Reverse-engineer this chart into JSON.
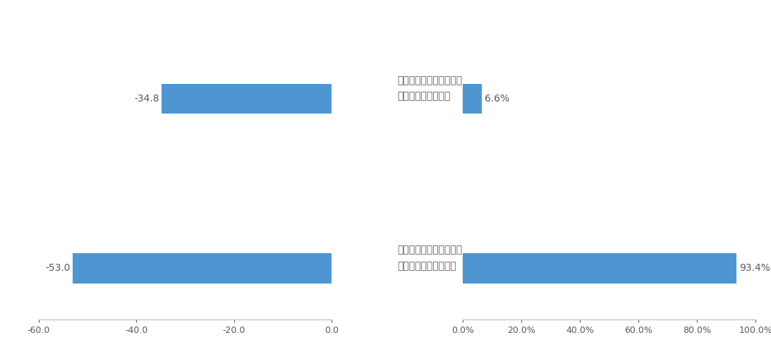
{
  "left_chart": {
    "values": [
      -34.8,
      -53.0
    ],
    "xlim": [
      -60,
      0
    ],
    "xticks": [
      -60.0,
      -40.0,
      -20.0,
      0.0
    ],
    "value_labels": [
      "-34.8",
      "-53.0"
    ]
  },
  "right_chart": {
    "values": [
      6.6,
      93.4
    ],
    "xlim": [
      0,
      100
    ],
    "xticks": [
      0,
      20,
      40,
      60,
      80,
      100
    ],
    "xtick_labels": [
      "0.0%",
      "20.0%",
      "40.0%",
      "60.0%",
      "80.0%",
      "100.0%"
    ],
    "value_labels": [
      "6.6%",
      "93.4%"
    ]
  },
  "label_top": "オンライン専用プランに\n契約している利用者",
  "label_bottom": "オンライン専用プランを\n契約していない利用者",
  "bar_color": "#4e96d2",
  "label_color": "#595959",
  "value_label_color": "#595959",
  "background_color": "#ffffff",
  "font_size": 10,
  "tick_font_size": 9,
  "bar_height": 0.35
}
